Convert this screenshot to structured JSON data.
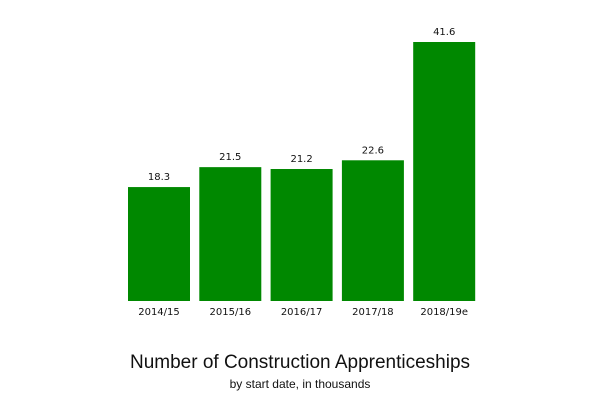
{
  "chart_data": {
    "type": "bar",
    "title": "Number of Construction Apprenticeships",
    "subtitle": "by start date, in thousands",
    "categories": [
      "2014/15",
      "2015/16",
      "2016/17",
      "2017/18",
      "2018/19e"
    ],
    "values": [
      18.3,
      21.5,
      21.2,
      22.6,
      41.6
    ],
    "color": "#008800"
  }
}
